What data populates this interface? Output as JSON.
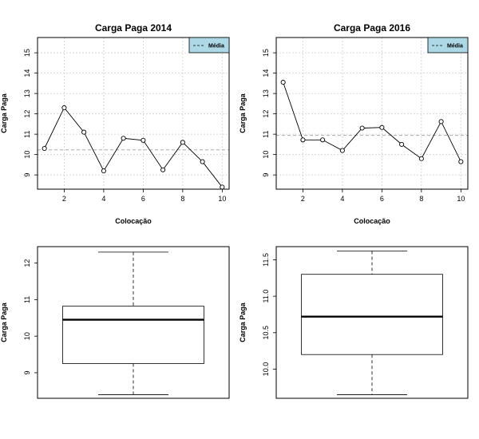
{
  "colors": {
    "legend_fill": "#add8e6",
    "grid": "#cccccc",
    "mean_line": "#aaaaaa",
    "line": "#000000"
  },
  "chart_data": [
    {
      "type": "line",
      "title": "Carga Paga 2014",
      "xlabel": "Colocação",
      "ylabel": "Carga Paga",
      "x": [
        1,
        2,
        3,
        4,
        5,
        6,
        7,
        8,
        9,
        10
      ],
      "y": [
        10.3,
        12.3,
        11.1,
        9.2,
        10.8,
        10.7,
        9.25,
        10.6,
        9.65,
        8.4
      ],
      "mean": 10.23,
      "legend": {
        "label": "Média",
        "position": "top-right"
      },
      "xlim": [
        0.65,
        10.35
      ],
      "ylim": [
        8.3,
        15.75
      ],
      "xticks": [
        "2",
        "4",
        "6",
        "8",
        "10"
      ],
      "yticks": [
        "9",
        "10",
        "11",
        "12",
        "13",
        "14",
        "15"
      ],
      "grid": true
    },
    {
      "type": "line",
      "title": "Carga Paga 2016",
      "xlabel": "Colocação",
      "ylabel": "Carga Paga",
      "x": [
        1,
        2,
        3,
        4,
        5,
        6,
        7,
        8,
        9,
        10
      ],
      "y": [
        13.55,
        10.72,
        10.72,
        10.2,
        11.3,
        11.33,
        10.5,
        9.8,
        11.62,
        9.65
      ],
      "mean": 10.94,
      "legend": {
        "label": "Média",
        "position": "top-right"
      },
      "xlim": [
        0.65,
        10.35
      ],
      "ylim": [
        8.3,
        15.75
      ],
      "xticks": [
        "2",
        "4",
        "6",
        "8",
        "10"
      ],
      "yticks": [
        "9",
        "10",
        "11",
        "12",
        "13",
        "14",
        "15"
      ],
      "grid": true
    },
    {
      "type": "box",
      "ylabel": "Carga Paga",
      "stats": {
        "min": 8.4,
        "q1": 9.25,
        "median": 10.45,
        "q3": 10.82,
        "max": 12.3
      },
      "ylim": [
        8.3,
        12.45
      ],
      "yticks": [
        "9",
        "10",
        "11",
        "12"
      ]
    },
    {
      "type": "box",
      "ylabel": "Carga Paga",
      "stats": {
        "min": 9.65,
        "q1": 10.2,
        "median": 10.72,
        "q3": 11.3,
        "max": 11.62
      },
      "ylim": [
        9.6,
        11.68
      ],
      "yticks": [
        "10.0",
        "10.5",
        "11.0",
        "11.5"
      ]
    }
  ]
}
